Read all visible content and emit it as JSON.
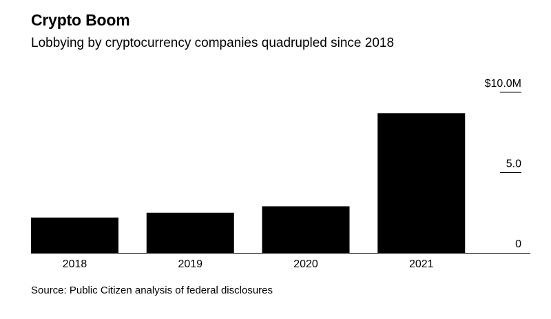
{
  "title": "Crypto Boom",
  "subtitle": "Lobbying by cryptocurrency companies quadrupled since 2018",
  "source": "Source: Public Citizen analysis of federal disclosures",
  "colors": {
    "bar": "#000000",
    "axis": "#000000",
    "background": "#ffffff"
  },
  "chart_data": {
    "type": "bar",
    "title": "Crypto Boom",
    "subtitle": "Lobbying by cryptocurrency companies quadrupled since 2018",
    "categories": [
      "2018",
      "2019",
      "2020",
      "2021"
    ],
    "values": [
      2.2,
      2.5,
      2.9,
      8.7
    ],
    "xlabel": "",
    "ylabel": "",
    "ylim": [
      0,
      10
    ],
    "y_ticks": [
      {
        "value": 10,
        "label": "$10.0M"
      },
      {
        "value": 5,
        "label": "5.0"
      },
      {
        "value": 0,
        "label": "0"
      }
    ],
    "grid": false,
    "y_axis_position": "right"
  }
}
